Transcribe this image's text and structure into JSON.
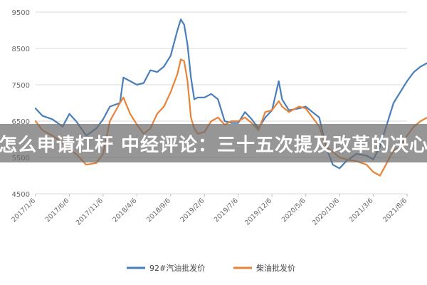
{
  "overlay": {
    "headline": "怎么申请杠杆 中经评论：三十五次提及改革的决心"
  },
  "chart_data": {
    "type": "line",
    "title": "",
    "xlabel": "",
    "ylabel": "",
    "ylim": [
      4500,
      9500
    ],
    "yticks": [
      4500,
      5500,
      6500,
      7500,
      8500,
      9500
    ],
    "grid": "horizontal",
    "legend_position": "bottom-center",
    "x_tick_labels": [
      "2017/1/6",
      "2017/6/6",
      "2017/11/6",
      "2018/4/6",
      "2018/9/6",
      "2019/2/6",
      "2019/7/6",
      "2019/12/6",
      "2020/5/6",
      "2020/10/6",
      "2021/3/6",
      "2021/8/6"
    ],
    "series": [
      {
        "name": "92#汽油批发价",
        "color": "#4a7ebb",
        "values": [
          [
            0,
            6850
          ],
          [
            0.2,
            6650
          ],
          [
            0.5,
            6550
          ],
          [
            0.8,
            6350
          ],
          [
            1.0,
            6700
          ],
          [
            1.2,
            6500
          ],
          [
            1.5,
            6100
          ],
          [
            1.8,
            6300
          ],
          [
            2.0,
            6550
          ],
          [
            2.2,
            6900
          ],
          [
            2.5,
            7000
          ],
          [
            2.6,
            7700
          ],
          [
            2.8,
            7600
          ],
          [
            3.0,
            7500
          ],
          [
            3.2,
            7550
          ],
          [
            3.4,
            7900
          ],
          [
            3.6,
            7850
          ],
          [
            3.8,
            8000
          ],
          [
            4.0,
            8300
          ],
          [
            4.2,
            9000
          ],
          [
            4.3,
            9300
          ],
          [
            4.4,
            9150
          ],
          [
            4.5,
            8600
          ],
          [
            4.6,
            7700
          ],
          [
            4.7,
            7100
          ],
          [
            4.8,
            7150
          ],
          [
            5.0,
            7150
          ],
          [
            5.2,
            7250
          ],
          [
            5.4,
            7100
          ],
          [
            5.6,
            6500
          ],
          [
            5.8,
            6450
          ],
          [
            6.0,
            6450
          ],
          [
            6.2,
            6750
          ],
          [
            6.4,
            6550
          ],
          [
            6.6,
            6300
          ],
          [
            6.8,
            6600
          ],
          [
            7.0,
            6800
          ],
          [
            7.2,
            7600
          ],
          [
            7.3,
            7100
          ],
          [
            7.5,
            6800
          ],
          [
            7.8,
            6850
          ],
          [
            8.0,
            6900
          ],
          [
            8.2,
            6750
          ],
          [
            8.4,
            6600
          ],
          [
            8.6,
            5800
          ],
          [
            8.8,
            5300
          ],
          [
            9.0,
            5200
          ],
          [
            9.2,
            5400
          ],
          [
            9.5,
            5600
          ],
          [
            9.8,
            5550
          ],
          [
            10.0,
            5450
          ],
          [
            10.2,
            5800
          ],
          [
            10.4,
            6400
          ],
          [
            10.6,
            7000
          ],
          [
            10.8,
            7300
          ],
          [
            11.0,
            7600
          ],
          [
            11.2,
            7850
          ],
          [
            11.4,
            8000
          ],
          [
            11.6,
            8100
          ],
          [
            11.8,
            8000
          ],
          [
            12.0,
            7800
          ]
        ]
      },
      {
        "name": "柴油批发价",
        "color": "#e8833a",
        "values": [
          [
            0,
            6500
          ],
          [
            0.2,
            6250
          ],
          [
            0.5,
            6100
          ],
          [
            0.8,
            5900
          ],
          [
            1.0,
            5700
          ],
          [
            1.2,
            5600
          ],
          [
            1.5,
            5300
          ],
          [
            1.8,
            5350
          ],
          [
            2.0,
            5600
          ],
          [
            2.2,
            6500
          ],
          [
            2.5,
            7000
          ],
          [
            2.6,
            7150
          ],
          [
            2.8,
            6700
          ],
          [
            3.0,
            6400
          ],
          [
            3.2,
            6150
          ],
          [
            3.4,
            6300
          ],
          [
            3.6,
            6700
          ],
          [
            3.8,
            6900
          ],
          [
            4.0,
            7300
          ],
          [
            4.2,
            7800
          ],
          [
            4.3,
            8200
          ],
          [
            4.4,
            8150
          ],
          [
            4.5,
            7600
          ],
          [
            4.6,
            6600
          ],
          [
            4.7,
            6300
          ],
          [
            4.8,
            6150
          ],
          [
            5.0,
            6200
          ],
          [
            5.2,
            6500
          ],
          [
            5.4,
            6600
          ],
          [
            5.6,
            6400
          ],
          [
            5.8,
            6500
          ],
          [
            6.0,
            6500
          ],
          [
            6.2,
            6600
          ],
          [
            6.4,
            6450
          ],
          [
            6.6,
            6250
          ],
          [
            6.8,
            6750
          ],
          [
            7.0,
            6800
          ],
          [
            7.2,
            7050
          ],
          [
            7.3,
            6900
          ],
          [
            7.5,
            6750
          ],
          [
            7.8,
            6900
          ],
          [
            8.0,
            6850
          ],
          [
            8.2,
            6600
          ],
          [
            8.4,
            6350
          ],
          [
            8.6,
            5800
          ],
          [
            8.8,
            5650
          ],
          [
            9.0,
            5500
          ],
          [
            9.2,
            5450
          ],
          [
            9.5,
            5400
          ],
          [
            9.8,
            5300
          ],
          [
            10.0,
            5100
          ],
          [
            10.2,
            5000
          ],
          [
            10.4,
            5350
          ],
          [
            10.6,
            5700
          ],
          [
            10.8,
            5800
          ],
          [
            11.0,
            6100
          ],
          [
            11.2,
            6350
          ],
          [
            11.4,
            6500
          ],
          [
            11.6,
            6600
          ],
          [
            11.8,
            6550
          ],
          [
            12.0,
            6400
          ]
        ]
      }
    ]
  }
}
